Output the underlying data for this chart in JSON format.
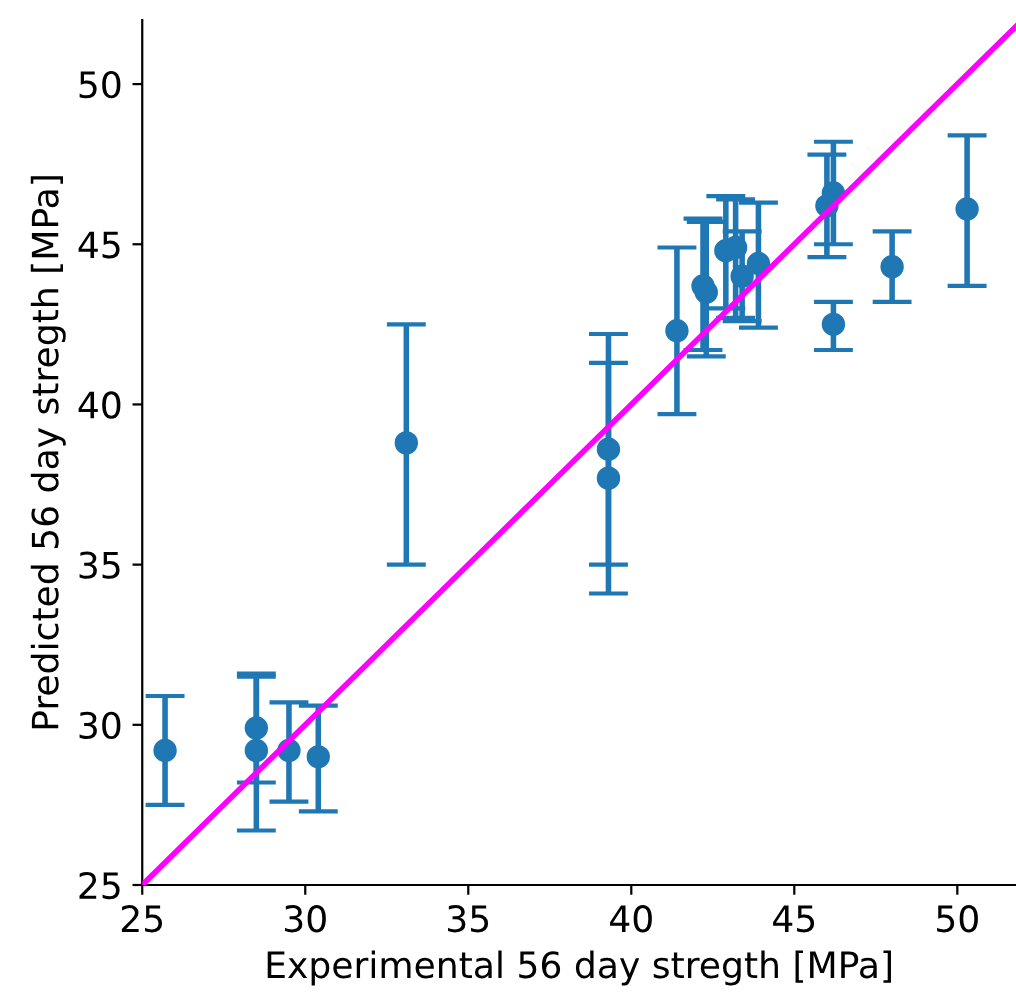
{
  "chart_data": {
    "type": "scatter",
    "xlabel": "Experimental 56 day stregth [MPa]",
    "ylabel": "Predicted 56 day stregth [MPa]",
    "xlim": [
      25,
      51.8
    ],
    "ylim": [
      25,
      52
    ],
    "xticks": [
      25,
      30,
      35,
      40,
      45,
      50
    ],
    "yticks": [
      25,
      30,
      35,
      40,
      45,
      50
    ],
    "grid": false,
    "legend": false,
    "marker": "circle",
    "series": [
      {
        "color": "#1f77b4",
        "x": [
          25.7,
          28.5,
          28.5,
          29.5,
          30.4,
          33.1,
          39.3,
          39.3,
          41.4,
          42.2,
          42.3,
          42.9,
          43.2,
          43.4,
          43.9,
          46.0,
          46.2,
          46.2,
          48.0,
          50.3
        ],
        "values": [
          29.2,
          29.9,
          29.2,
          29.2,
          29.0,
          38.8,
          38.6,
          37.7,
          42.3,
          43.7,
          43.5,
          44.8,
          44.9,
          44.0,
          44.4,
          46.2,
          46.6,
          42.5,
          44.3,
          46.1
        ],
        "errors": [
          [
            27.5,
            30.9
          ],
          [
            28.2,
            31.6
          ],
          [
            26.7,
            31.5
          ],
          [
            27.6,
            30.7
          ],
          [
            27.3,
            30.6
          ],
          [
            35.0,
            42.5
          ],
          [
            35.0,
            42.2
          ],
          [
            34.1,
            41.3
          ],
          [
            39.7,
            44.9
          ],
          [
            41.7,
            45.8
          ],
          [
            41.5,
            45.7
          ],
          [
            43.0,
            46.5
          ],
          [
            42.7,
            46.4
          ],
          [
            42.6,
            45.4
          ],
          [
            42.4,
            46.3
          ],
          [
            44.6,
            47.8
          ],
          [
            45.0,
            48.2
          ],
          [
            41.7,
            43.2
          ],
          [
            43.2,
            45.4
          ],
          [
            43.7,
            48.4
          ]
        ]
      },
      {
        "type": "line",
        "color": "#ff00ff",
        "x": [
          25,
          51.8
        ],
        "values": [
          25,
          51.8
        ],
        "marker": "none",
        "line_style": "solid"
      }
    ]
  }
}
